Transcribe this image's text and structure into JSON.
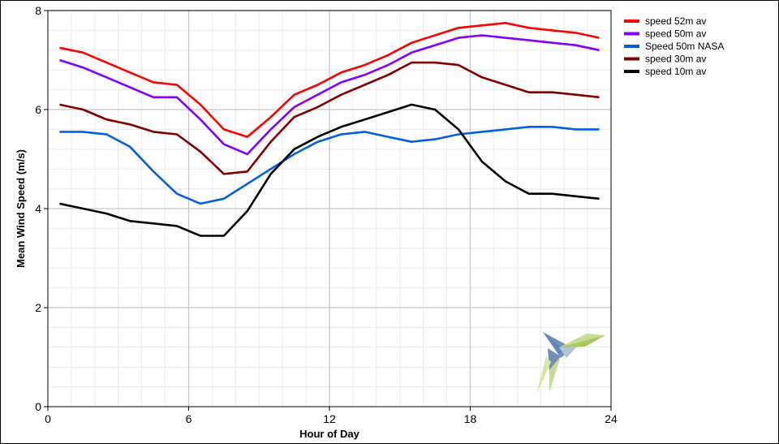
{
  "chart_data": {
    "type": "line",
    "title": "",
    "xlabel": "Hour of Day",
    "ylabel": "Mean Wind Speed (m/s)",
    "xlim": [
      0,
      24
    ],
    "ylim": [
      0,
      8
    ],
    "x_ticks": [
      "0",
      "6",
      "12",
      "18",
      "24"
    ],
    "y_ticks": [
      "0",
      "2",
      "4",
      "6",
      "8"
    ],
    "grid": true,
    "legend_position": "top-right",
    "series": [
      {
        "name": "speed 52m av",
        "color": "#ff0000",
        "x": [
          0.5,
          1.5,
          2.5,
          3.5,
          4.5,
          5.5,
          6.5,
          7.5,
          8.5,
          9.5,
          10.5,
          11.5,
          12.5,
          13.5,
          14.5,
          15.5,
          16.5,
          17.5,
          18.5,
          19.5,
          20.5,
          21.5,
          22.5,
          23.5
        ],
        "values": [
          7.25,
          7.15,
          6.95,
          6.75,
          6.55,
          6.5,
          6.1,
          5.6,
          5.45,
          5.85,
          6.3,
          6.5,
          6.75,
          6.9,
          7.1,
          7.35,
          7.5,
          7.65,
          7.7,
          7.75,
          7.65,
          7.6,
          7.55,
          7.45
        ]
      },
      {
        "name": "speed 50m av",
        "color": "#8000ff",
        "x": [
          0.5,
          1.5,
          2.5,
          3.5,
          4.5,
          5.5,
          6.5,
          7.5,
          8.5,
          9.5,
          10.5,
          11.5,
          12.5,
          13.5,
          14.5,
          15.5,
          16.5,
          17.5,
          18.5,
          19.5,
          20.5,
          21.5,
          22.5,
          23.5
        ],
        "values": [
          7.0,
          6.85,
          6.65,
          6.45,
          6.25,
          6.25,
          5.8,
          5.3,
          5.1,
          5.6,
          6.05,
          6.3,
          6.55,
          6.7,
          6.9,
          7.15,
          7.3,
          7.45,
          7.5,
          7.45,
          7.4,
          7.35,
          7.3,
          7.2
        ]
      },
      {
        "name": "Speed 50m NASA",
        "color": "#0060e0",
        "x": [
          0.5,
          1.5,
          2.5,
          3.5,
          4.5,
          5.5,
          6.5,
          7.5,
          8.5,
          9.5,
          10.5,
          11.5,
          12.5,
          13.5,
          14.5,
          15.5,
          16.5,
          17.5,
          18.5,
          19.5,
          20.5,
          21.5,
          22.5,
          23.5
        ],
        "values": [
          5.55,
          5.55,
          5.5,
          5.25,
          4.75,
          4.3,
          4.1,
          4.2,
          4.5,
          4.8,
          5.1,
          5.35,
          5.5,
          5.55,
          5.45,
          5.35,
          5.4,
          5.5,
          5.55,
          5.6,
          5.65,
          5.65,
          5.6,
          5.6
        ]
      },
      {
        "name": "speed 30m av",
        "color": "#800000",
        "x": [
          0.5,
          1.5,
          2.5,
          3.5,
          4.5,
          5.5,
          6.5,
          7.5,
          8.5,
          9.5,
          10.5,
          11.5,
          12.5,
          13.5,
          14.5,
          15.5,
          16.5,
          17.5,
          18.5,
          19.5,
          20.5,
          21.5,
          22.5,
          23.5
        ],
        "values": [
          6.1,
          6.0,
          5.8,
          5.7,
          5.55,
          5.5,
          5.15,
          4.7,
          4.75,
          5.35,
          5.85,
          6.05,
          6.3,
          6.5,
          6.7,
          6.95,
          6.95,
          6.9,
          6.65,
          6.5,
          6.35,
          6.35,
          6.3,
          6.25
        ]
      },
      {
        "name": "speed 10m av",
        "color": "#000000",
        "x": [
          0.5,
          1.5,
          2.5,
          3.5,
          4.5,
          5.5,
          6.5,
          7.5,
          8.5,
          9.5,
          10.5,
          11.5,
          12.5,
          13.5,
          14.5,
          15.5,
          16.5,
          17.5,
          18.5,
          19.5,
          20.5,
          21.5,
          22.5,
          23.5
        ],
        "values": [
          4.1,
          4.0,
          3.9,
          3.75,
          3.7,
          3.65,
          3.45,
          3.45,
          3.95,
          4.7,
          5.2,
          5.45,
          5.65,
          5.8,
          5.95,
          6.1,
          6.0,
          5.6,
          4.95,
          4.55,
          4.3,
          4.3,
          4.25,
          4.2
        ]
      }
    ]
  }
}
